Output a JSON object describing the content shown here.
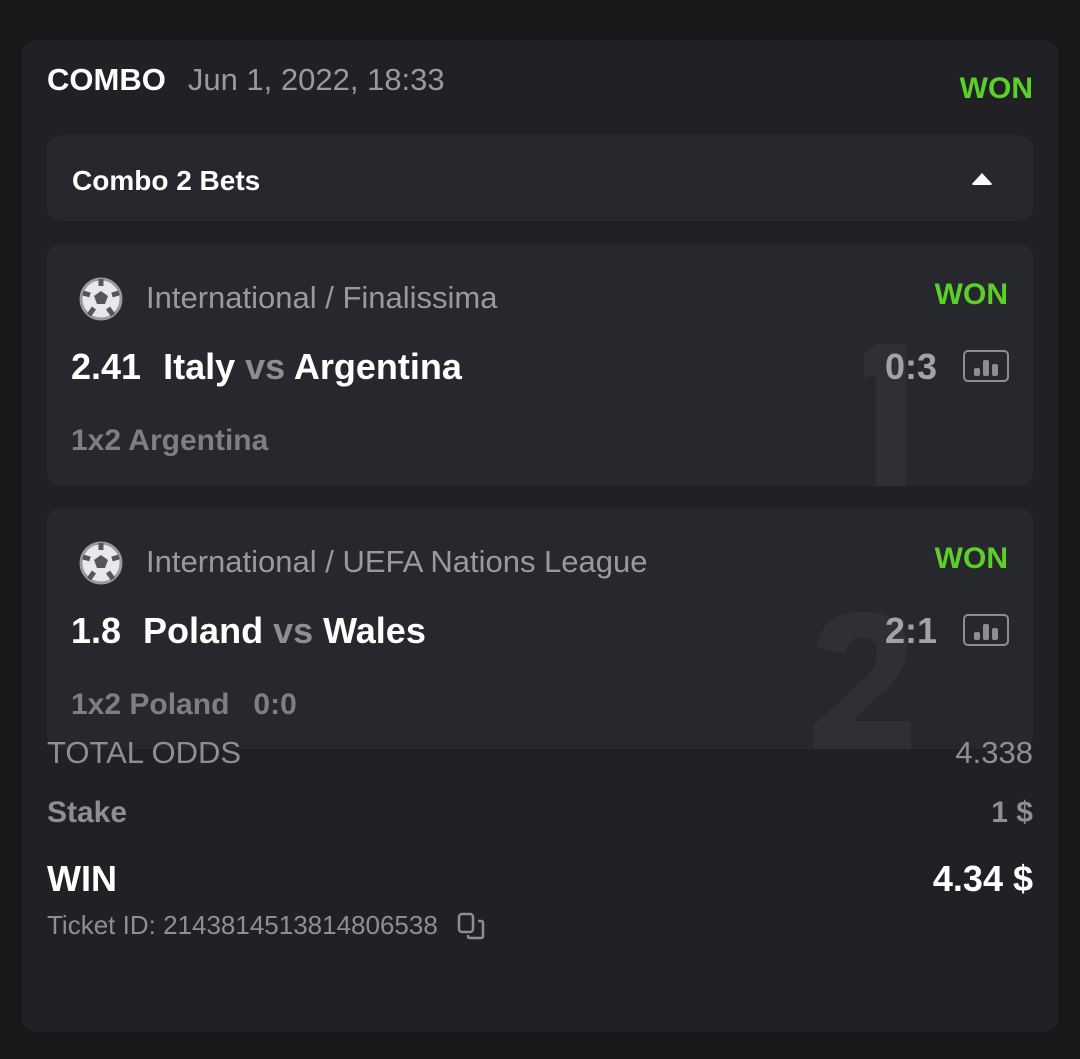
{
  "header": {
    "type": "COMBO",
    "date": "Jun 1, 2022, 18:33",
    "status": "WON"
  },
  "combo": {
    "label": "Combo 2 Bets"
  },
  "bets": [
    {
      "index": "1",
      "sport_icon": "soccer-ball-icon",
      "league": "International / Finalissima",
      "status": "WON",
      "odds": "2.41",
      "home": "Italy",
      "vs": "vs",
      "away": "Argentina",
      "score": "0:3",
      "pick": "1x2 Argentina",
      "pick_score": ""
    },
    {
      "index": "2",
      "sport_icon": "soccer-ball-icon",
      "league": "International / UEFA Nations League",
      "status": "WON",
      "odds": "1.8",
      "home": "Poland",
      "vs": "vs",
      "away": "Wales",
      "score": "2:1",
      "pick": "1x2 Poland",
      "pick_score": "0:0"
    }
  ],
  "totals": {
    "total_odds_label": "TOTAL ODDS",
    "total_odds": "4.338",
    "stake_label": "Stake",
    "stake": "1 $",
    "win_label": "WIN",
    "win": "4.34 $",
    "ticket_label": "Ticket ID:",
    "ticket_id": "2143814513814806538"
  },
  "colors": {
    "won": "#5ccf28",
    "background": "#18181b",
    "card": "#202125",
    "panel": "#27282d"
  }
}
